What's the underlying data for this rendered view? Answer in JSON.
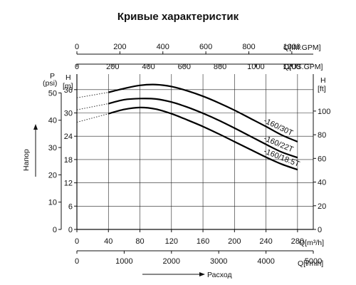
{
  "chart_data": {
    "type": "line",
    "title": "Кривые характеристик",
    "grid": true,
    "ylabel": "Напор",
    "xlabel": "Расход",
    "x_unit_label": "Q[m³/h]",
    "x_range": [
      0,
      300
    ],
    "x_ticks": [
      0,
      40,
      80,
      120,
      160,
      200,
      240,
      280
    ],
    "y_unit_label": "H [m]",
    "y_range": [
      0,
      40
    ],
    "y_ticks": [
      0,
      6,
      12,
      18,
      24,
      30,
      36
    ],
    "secondary_axes": {
      "top_im_gpm": {
        "label": "Q[IM.GPM]",
        "ticks": [
          "0",
          "200",
          "400",
          "600",
          "800",
          "1000"
        ]
      },
      "top_us_gpm": {
        "label": "Q[US.GPM]",
        "ticks": [
          "0",
          "200",
          "400",
          "600",
          "800",
          "1000",
          "1200"
        ]
      },
      "bottom_l_min": {
        "label": "Q[l/min]",
        "ticks": [
          "0",
          "1000",
          "2000",
          "3000",
          "4000",
          "5000"
        ]
      },
      "left_psi": {
        "label": "P",
        "unit": "(psi)",
        "ticks": [
          "0",
          "10",
          "20",
          "30",
          "40",
          "50"
        ]
      },
      "right_ft": {
        "label": "H",
        "unit": "[ft]",
        "ticks": [
          "0",
          "20",
          "40",
          "60",
          "80",
          "100"
        ]
      }
    },
    "series": [
      {
        "name": "-160/30T",
        "dotted": [
          [
            0,
            33.9
          ],
          [
            40,
            35.3
          ]
        ],
        "x": [
          40,
          60,
          80,
          100,
          120,
          140,
          160,
          180,
          200,
          220,
          240,
          260,
          280
        ],
        "y": [
          35.3,
          36.3,
          37.1,
          37.3,
          36.8,
          35.7,
          34.3,
          32.6,
          30.7,
          28.6,
          26.5,
          24.3,
          22.6
        ]
      },
      {
        "name": "-160/22T",
        "dotted": [
          [
            0,
            30.8
          ],
          [
            40,
            32.4
          ]
        ],
        "x": [
          40,
          60,
          80,
          100,
          120,
          140,
          160,
          180,
          200,
          220,
          240,
          260,
          280
        ],
        "y": [
          32.4,
          33.4,
          33.7,
          33.6,
          32.8,
          31.5,
          29.9,
          28.1,
          26.1,
          24.0,
          21.9,
          19.9,
          18.5
        ]
      },
      {
        "name": "-160/18.5T",
        "dotted": [
          [
            0,
            27.6
          ],
          [
            40,
            29.8
          ]
        ],
        "x": [
          40,
          60,
          80,
          100,
          120,
          140,
          160,
          180,
          200,
          220,
          240,
          260,
          280
        ],
        "y": [
          29.8,
          30.9,
          31.4,
          31.0,
          29.8,
          28.2,
          26.5,
          24.6,
          22.6,
          20.6,
          18.6,
          16.8,
          15.4
        ]
      }
    ]
  }
}
